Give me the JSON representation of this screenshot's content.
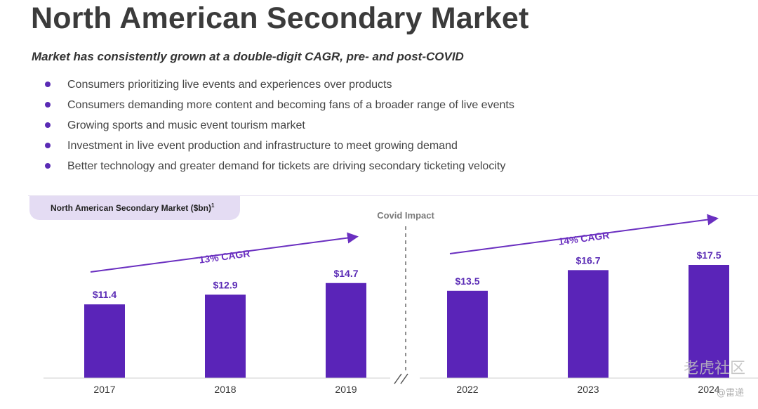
{
  "header": {
    "title": "North American Secondary Market",
    "subtitle": "Market has consistently grown at a double-digit CAGR, pre- and post-COVID"
  },
  "bullets": [
    "Consumers prioritizing live events and experiences over products",
    "Consumers demanding more content and becoming fans of a broader range of live events",
    "Growing sports and music event tourism market",
    "Investment in live event production and infrastructure to meet growing demand",
    "Better technology and greater demand for tickets are driving secondary ticketing velocity"
  ],
  "colors": {
    "bar": "#5a24b8",
    "accent": "#6a2fc0",
    "tab": "#e4dcf3"
  },
  "watermark": {
    "brand": "老虎社区",
    "handle": "@雷递"
  },
  "chart_data": {
    "type": "bar",
    "title": "North American Secondary Market ($bn)",
    "title_superscript": "1",
    "categories": [
      "2017",
      "2018",
      "2019",
      "2022",
      "2023",
      "2024"
    ],
    "values": [
      11.4,
      12.9,
      14.7,
      13.5,
      16.7,
      17.5
    ],
    "data_labels": [
      "$11.4",
      "$12.9",
      "$14.7",
      "$13.5",
      "$16.7",
      "$17.5"
    ],
    "ylim": [
      0,
      20
    ],
    "annotations": {
      "divider_label": "Covid Impact",
      "cagr_left": "13% CAGR",
      "cagr_right": "14% CAGR"
    }
  }
}
